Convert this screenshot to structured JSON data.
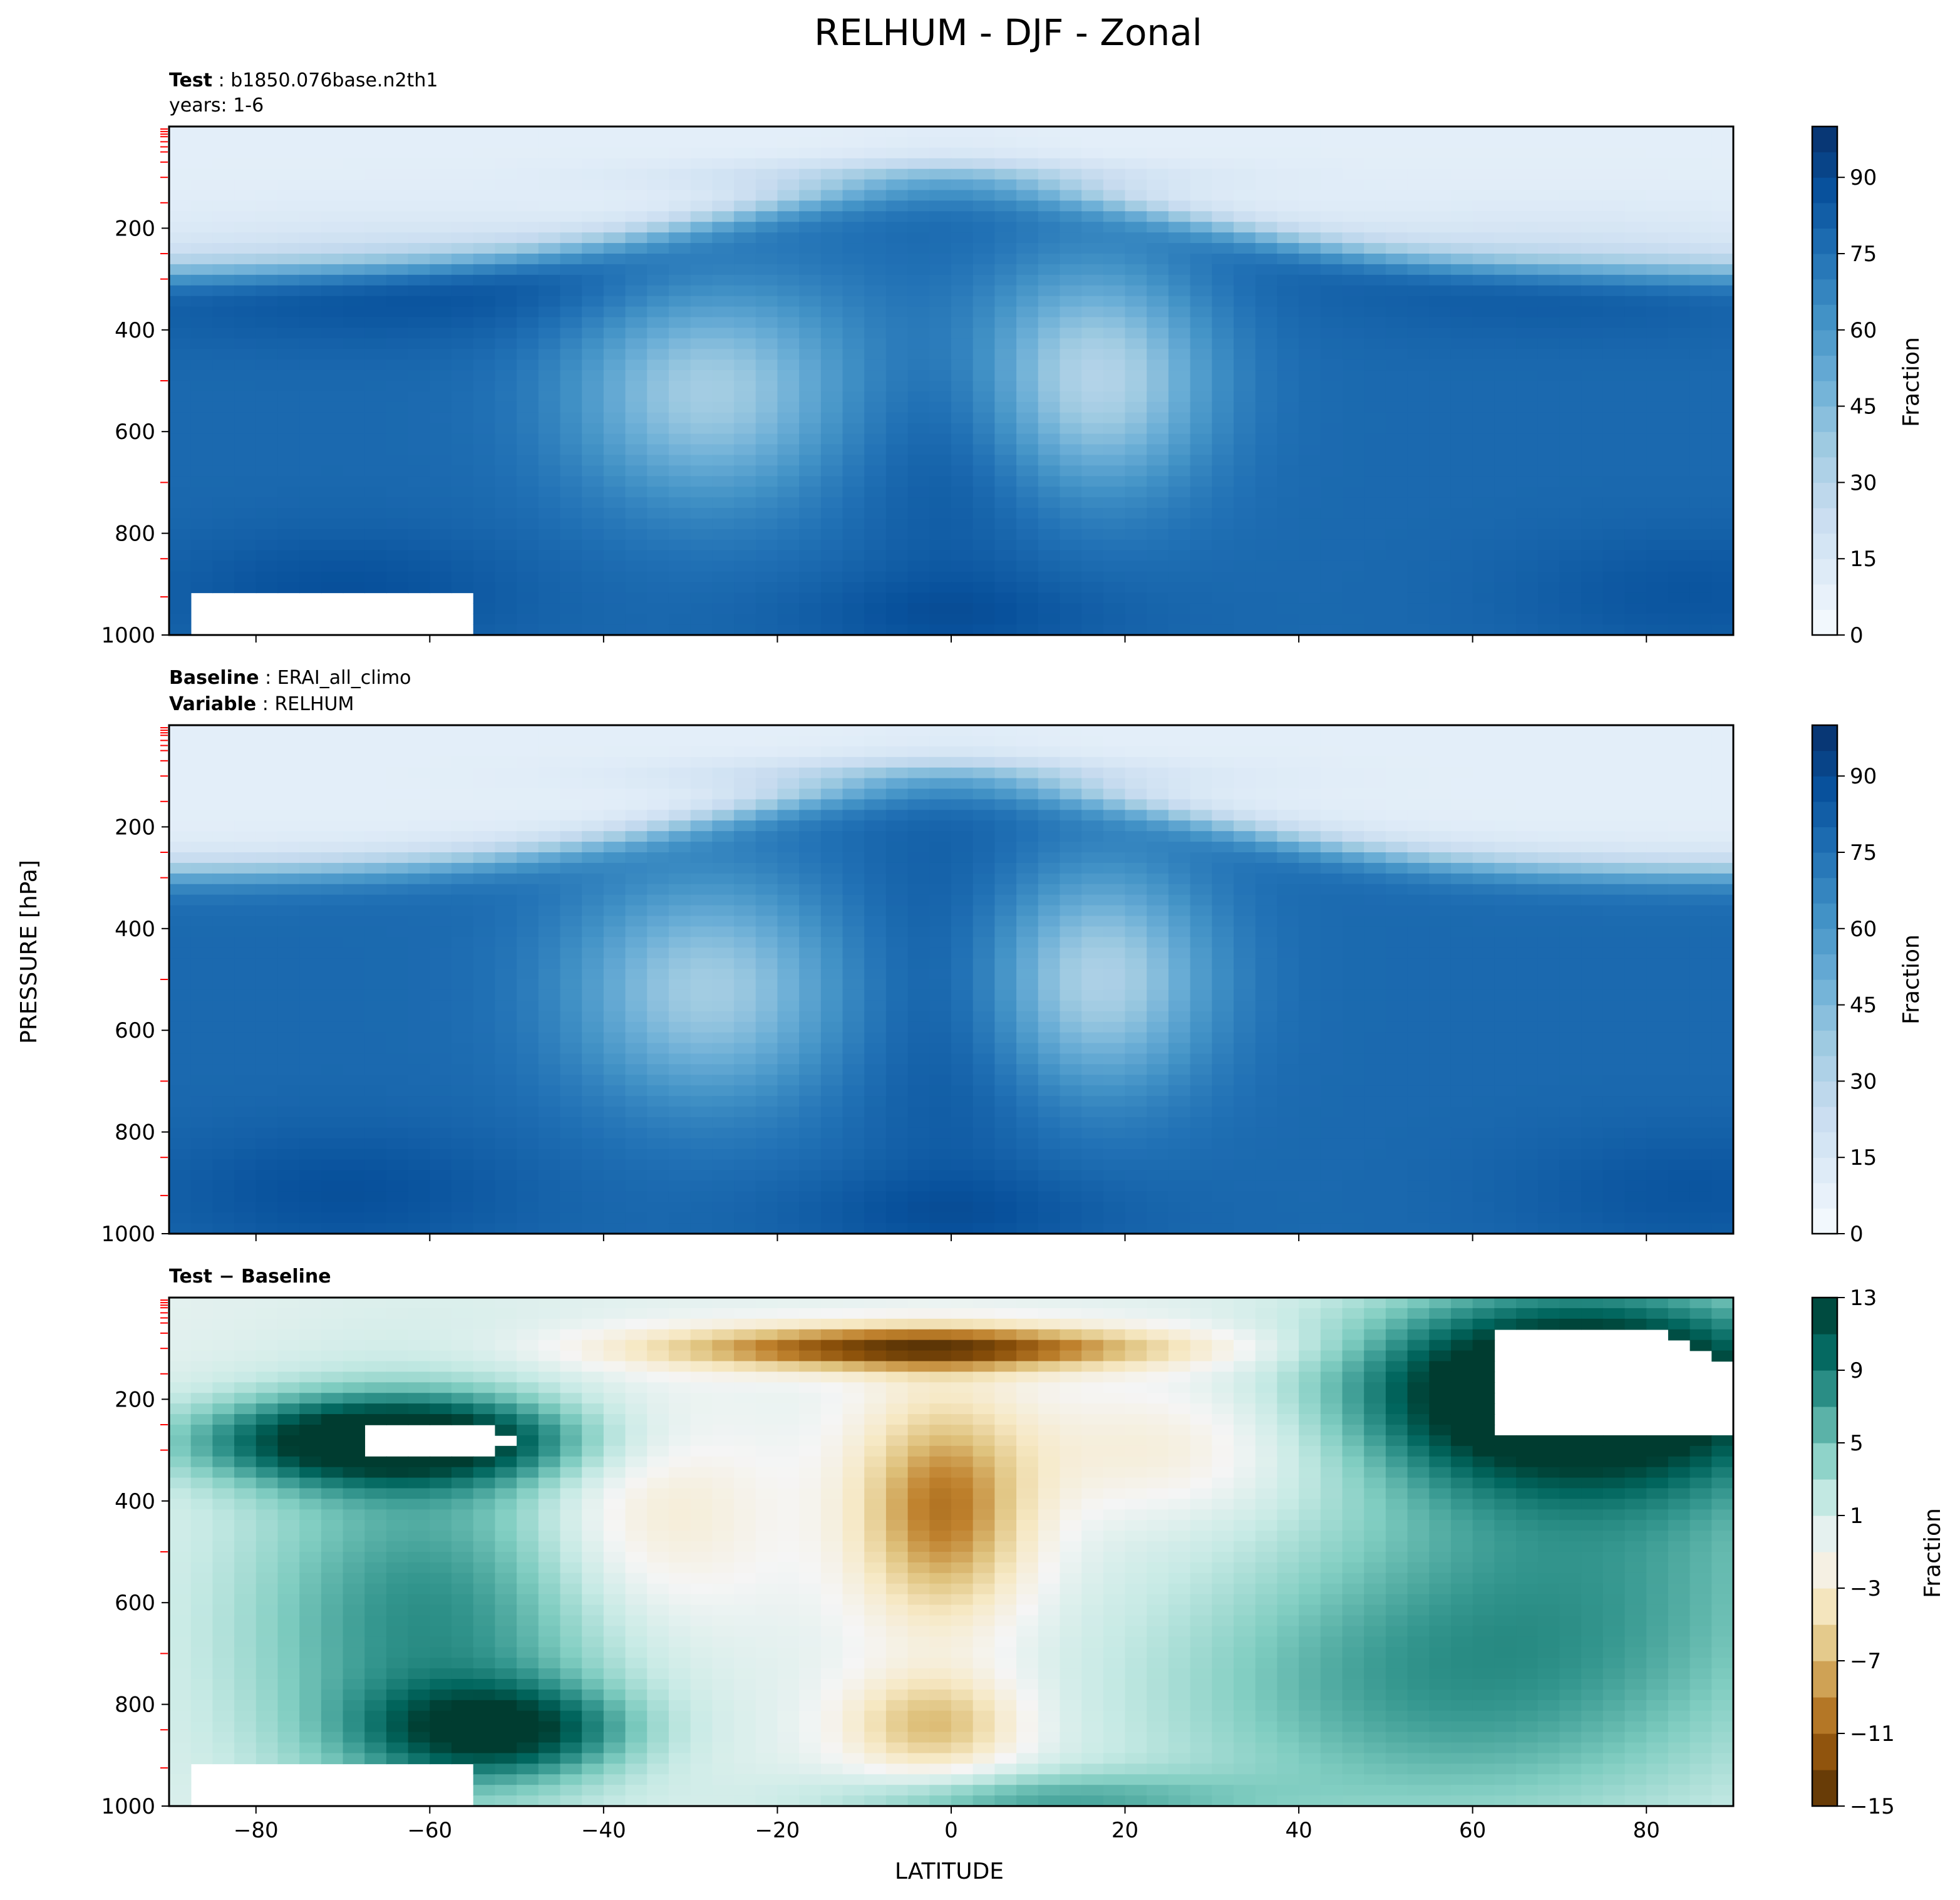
{
  "figure": {
    "title": "RELHUM - DJF - Zonal",
    "xlabel": "LATITUDE",
    "ylabel": "PRESSURE [hPa]"
  },
  "panels": [
    {
      "id": "test",
      "head_bold": "Test",
      "head_text": "b1850.076base.n2th1",
      "head_line2": "years: 1-6",
      "cbar_label": "Fraction",
      "cbar_ticks": [
        "0",
        "15",
        "30",
        "45",
        "60",
        "75",
        "90"
      ],
      "cmap": "blues"
    },
    {
      "id": "baseline",
      "head_bold": "Baseline",
      "head_text": "ERAI_all_climo",
      "head_bold2": "Variable",
      "head_text2": "RELHUM",
      "cbar_label": "Fraction",
      "cbar_ticks": [
        "0",
        "15",
        "30",
        "45",
        "60",
        "75",
        "90"
      ],
      "cmap": "blues"
    },
    {
      "id": "diff",
      "head_bold": "Test − Baseline",
      "cbar_label": "Fraction",
      "cbar_ticks": [
        "−15",
        "−11",
        "−7",
        "−3",
        "1",
        "5",
        "9",
        "13"
      ],
      "cmap": "brbg"
    }
  ],
  "chart_data": {
    "type": "heatmap",
    "x_ticks": [
      "−80",
      "−60",
      "−40",
      "−20",
      "0",
      "20",
      "40",
      "60",
      "80"
    ],
    "y_ticks": [
      "200",
      "400",
      "600",
      "800",
      "1000"
    ],
    "xlim": [
      -90,
      90
    ],
    "ylim": [
      1000,
      0
    ],
    "levels_fraction": [
      0,
      5,
      10,
      15,
      20,
      25,
      30,
      35,
      40,
      45,
      50,
      55,
      60,
      65,
      70,
      75,
      80,
      85,
      90,
      95,
      100
    ],
    "levels_difference": [
      -15,
      -13,
      -11,
      -9,
      -7,
      -5,
      -3,
      -1,
      1,
      3,
      5,
      7,
      9,
      11,
      13
    ],
    "colors": {
      "blues_low": "#f7fbff",
      "blues_high": "#08306b",
      "brbg_low": "#543005",
      "brbg_mid": "#f5f5f5",
      "brbg_high": "#003c30",
      "missing": "#ffffff",
      "tick_marks_left": "#ff0000"
    }
  }
}
